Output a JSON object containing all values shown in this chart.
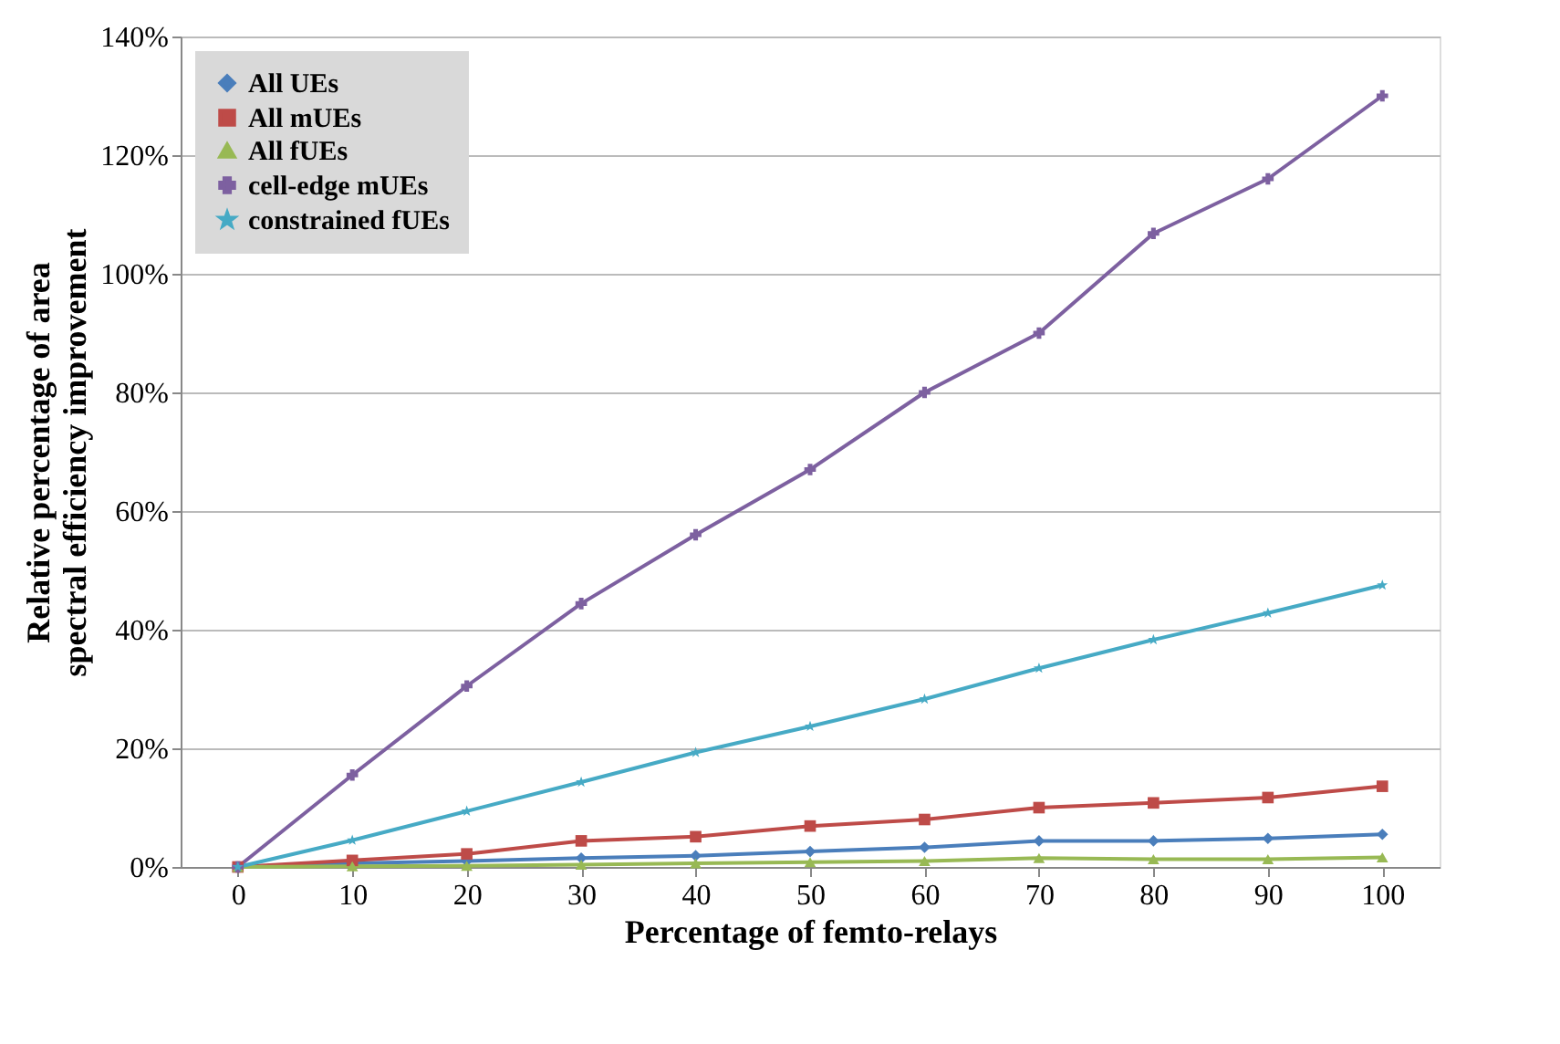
{
  "chart_data": {
    "type": "line",
    "xlabel": "Percentage of femto-relays",
    "ylabel": "Relative percentage of area spectral efficiency improvement",
    "categories": [
      "0",
      "10",
      "20",
      "30",
      "40",
      "50",
      "60",
      "70",
      "80",
      "90",
      "100"
    ],
    "ylim": [
      0,
      140
    ],
    "yticks": [
      {
        "value": 0,
        "label": "0%"
      },
      {
        "value": 20,
        "label": "20%"
      },
      {
        "value": 40,
        "label": "40%"
      },
      {
        "value": 60,
        "label": "60%"
      },
      {
        "value": 80,
        "label": "80%"
      },
      {
        "value": 100,
        "label": "100%"
      },
      {
        "value": 120,
        "label": "120%"
      },
      {
        "value": 140,
        "label": "140%"
      }
    ],
    "grid": "y",
    "legend": "top left",
    "line_style": "solid",
    "series": [
      {
        "name": "All UEs",
        "color": "#4a7ebb",
        "marker": "diamond",
        "values": [
          0,
          0.6,
          1.0,
          1.5,
          1.9,
          2.6,
          3.3,
          4.4,
          4.4,
          4.8,
          5.5
        ]
      },
      {
        "name": "All mUEs",
        "color": "#be4b48",
        "marker": "square",
        "values": [
          0,
          1.1,
          2.2,
          4.4,
          5.1,
          6.9,
          8.0,
          10.0,
          10.8,
          11.7,
          13.6
        ]
      },
      {
        "name": "All fUEs",
        "color": "#98b954",
        "marker": "triangle",
        "values": [
          0,
          0.1,
          0.2,
          0.4,
          0.6,
          0.8,
          1.0,
          1.5,
          1.3,
          1.3,
          1.6
        ]
      },
      {
        "name": "cell-edge mUEs",
        "color": "#7d60a0",
        "marker": "cross",
        "values": [
          0,
          15.5,
          30.5,
          44.4,
          56,
          67,
          80,
          90,
          106.8,
          116,
          130
        ]
      },
      {
        "name": "constrained fUEs",
        "color": "#46aac5",
        "marker": "star",
        "values": [
          0,
          4.5,
          9.4,
          14.3,
          19.3,
          23.7,
          28.3,
          33.5,
          38.3,
          42.8,
          47.5
        ]
      }
    ]
  }
}
